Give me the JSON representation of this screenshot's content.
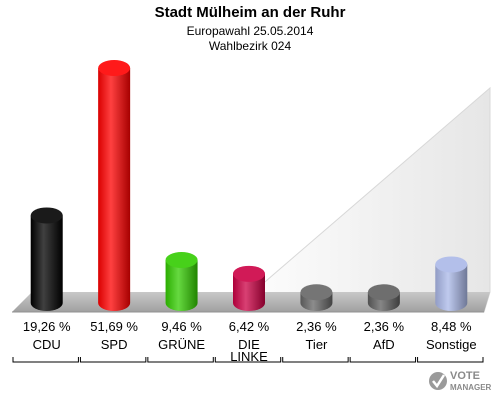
{
  "header": {
    "title": "Stadt Mülheim an der Ruhr",
    "subtitle": "Europawahl 25.05.2014",
    "district": "Wahlbezirk 024"
  },
  "chart_data": {
    "type": "bar",
    "title": "Stadt Mülheim an der Ruhr",
    "subtitle": "Europawahl 25.05.2014 / Wahlbezirk 024",
    "categories": [
      "CDU",
      "SPD",
      "GRÜNE",
      "DIE LINKE",
      "Tier",
      "AfD",
      "Sonstige"
    ],
    "category_lines": [
      [
        "CDU"
      ],
      [
        "SPD"
      ],
      [
        "GRÜNE"
      ],
      [
        "DIE",
        "LINKE"
      ],
      [
        "Tier"
      ],
      [
        "AfD"
      ],
      [
        "Sonstige"
      ]
    ],
    "values": [
      19.26,
      51.69,
      9.46,
      6.42,
      2.36,
      2.36,
      8.48
    ],
    "value_labels": [
      "19,26 %",
      "51,69 %",
      "9,46 %",
      "6,42 %",
      "2,36 %",
      "2,36 %",
      "8,48 %"
    ],
    "colors": [
      "#000000",
      "#ff0000",
      "#33cc00",
      "#cc0044",
      "#666666",
      "#5e5e5e",
      "#aab8e8"
    ],
    "unit": "%",
    "grid": false,
    "legend": "none"
  },
  "logo": {
    "line1": "VOTE",
    "line2": "MANAGER"
  }
}
